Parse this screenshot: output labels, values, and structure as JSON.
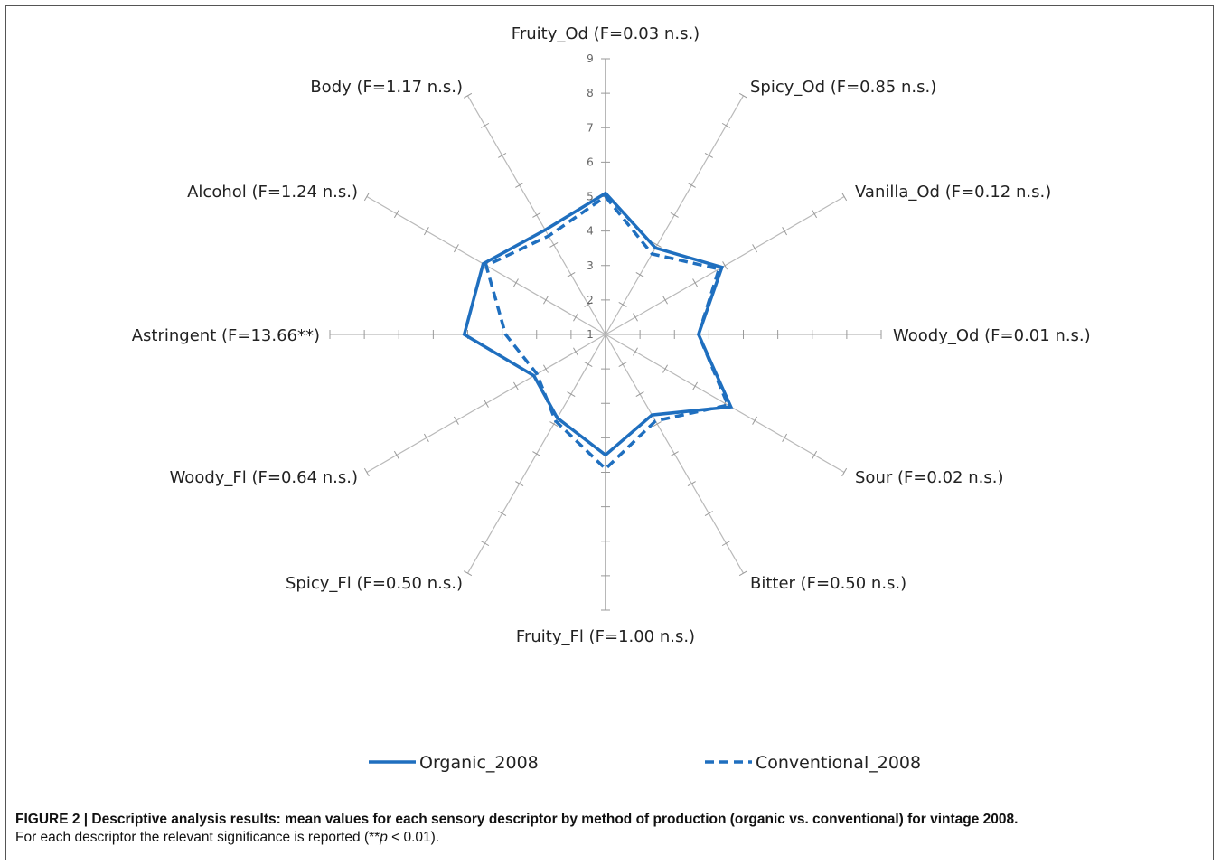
{
  "chart_data": {
    "type": "radar",
    "axes": [
      "Fruity_Od (F=0.03 n.s.)",
      "Spicy_Od (F=0.85 n.s.)",
      "Vanilla_Od (F=0.12 n.s.)",
      "Woody_Od (F=0.01 n.s.)",
      "Sour (F=0.02 n.s.)",
      "Bitter (F=0.50 n.s.)",
      "Fruity_Fl (F=1.00 n.s.)",
      "Spicy_Fl (F=0.50 n.s.)",
      "Woody_Fl (F=0.64 n.s.)",
      "Astringent (F=13.66**)",
      "Alcohol (F=1.24 n.s.)",
      "Body (F=1.17 n.s.)"
    ],
    "rlim": [
      1,
      9
    ],
    "ticks": [
      "1",
      "2",
      "3",
      "4",
      "5",
      "6",
      "7",
      "8",
      "9"
    ],
    "series": [
      {
        "name": "Organic_2008",
        "style": "solid",
        "color": "#1f6fbf",
        "values": [
          5.1,
          3.9,
          4.9,
          3.7,
          5.2,
          3.7,
          4.5,
          3.8,
          3.4,
          5.1,
          5.1,
          4.5
        ]
      },
      {
        "name": "Conventional_2008",
        "style": "dashed",
        "color": "#1f6fbf",
        "values": [
          5.0,
          3.7,
          4.8,
          3.7,
          5.1,
          3.9,
          4.9,
          3.9,
          3.3,
          3.9,
          5.0,
          4.3
        ]
      }
    ],
    "legend": "bottom",
    "grid": false
  },
  "caption": {
    "bold": "FIGURE 2 | Descriptive analysis results: mean values for each sensory descriptor by method of production (organic vs. conventional) for vintage 2008.",
    "normal_before": "For each descriptor the relevant significance is reported (**",
    "italic": "p",
    "normal_after": " < 0.01)."
  }
}
